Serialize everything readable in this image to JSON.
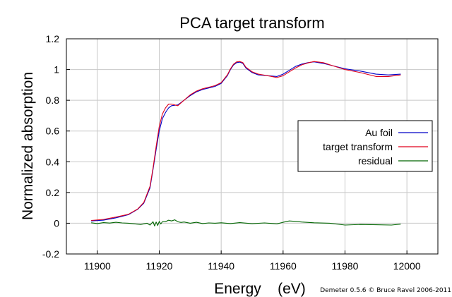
{
  "chart_data": {
    "type": "line",
    "title": "PCA target transform",
    "xlabel": "Energy    (eV)",
    "ylabel": "Normalized absorption",
    "credit": "Demeter 0.5.6 © Bruce Ravel 2006-2011",
    "xlim": [
      11890,
      12010
    ],
    "ylim": [
      -0.2,
      1.2
    ],
    "xticks": [
      "11900",
      "11920",
      "11940",
      "11960",
      "11980",
      "12000"
    ],
    "yticks": [
      "-0.2",
      "0",
      "0.2",
      "0.4",
      "0.6",
      "0.8",
      "1",
      "1.2"
    ],
    "grid": true,
    "legend_position": "right",
    "series": [
      {
        "name": "Au foil",
        "color": "#0000c8",
        "x": [
          11898,
          11902,
          11906,
          11910,
          11913,
          11915,
          11917,
          11918,
          11919,
          11920,
          11921,
          11922,
          11923,
          11924,
          11926,
          11928,
          11930,
          11932,
          11934,
          11936,
          11938,
          11940,
          11942,
          11943,
          11944,
          11945,
          11946,
          11947,
          11948,
          11950,
          11952,
          11955,
          11958,
          11960,
          11962,
          11964,
          11966,
          11968,
          11970,
          11973,
          11976,
          11980,
          11985,
          11990,
          11994,
          11998
        ],
        "values": [
          0.015,
          0.02,
          0.035,
          0.055,
          0.09,
          0.13,
          0.23,
          0.35,
          0.48,
          0.6,
          0.68,
          0.72,
          0.75,
          0.765,
          0.77,
          0.8,
          0.83,
          0.855,
          0.87,
          0.88,
          0.89,
          0.91,
          0.96,
          1.0,
          1.03,
          1.045,
          1.048,
          1.04,
          1.01,
          0.98,
          0.965,
          0.96,
          0.955,
          0.97,
          0.995,
          1.02,
          1.035,
          1.045,
          1.05,
          1.04,
          1.025,
          1.005,
          0.99,
          0.97,
          0.965,
          0.97
        ]
      },
      {
        "name": "target transform",
        "color": "#e0001c",
        "x": [
          11898,
          11902,
          11906,
          11910,
          11913,
          11915,
          11917,
          11918,
          11919,
          11920,
          11921,
          11922,
          11923,
          11924,
          11926,
          11928,
          11930,
          11932,
          11934,
          11936,
          11938,
          11940,
          11942,
          11943,
          11944,
          11945,
          11946,
          11947,
          11948,
          11950,
          11952,
          11955,
          11958,
          11960,
          11962,
          11964,
          11966,
          11968,
          11970,
          11973,
          11976,
          11980,
          11985,
          11990,
          11994,
          11998
        ],
        "values": [
          0.018,
          0.025,
          0.04,
          0.058,
          0.092,
          0.135,
          0.24,
          0.36,
          0.5,
          0.63,
          0.71,
          0.75,
          0.775,
          0.775,
          0.765,
          0.8,
          0.835,
          0.86,
          0.875,
          0.885,
          0.895,
          0.915,
          0.965,
          1.005,
          1.035,
          1.05,
          1.052,
          1.045,
          1.015,
          0.985,
          0.97,
          0.96,
          0.948,
          0.96,
          0.985,
          1.01,
          1.03,
          1.043,
          1.052,
          1.045,
          1.025,
          1.0,
          0.98,
          0.955,
          0.955,
          0.965
        ]
      },
      {
        "name": "residual",
        "color": "#006400",
        "x": [
          11898,
          11900,
          11902,
          11904,
          11906,
          11908,
          11910,
          11912,
          11914,
          11916,
          11917,
          11918,
          11918.5,
          11919,
          11919.5,
          11920,
          11920.5,
          11921,
          11922,
          11923,
          11924,
          11925,
          11926,
          11927,
          11928,
          11930,
          11932,
          11934,
          11936,
          11938,
          11940,
          11943,
          11946,
          11950,
          11954,
          11958,
          11960,
          11962,
          11964,
          11966,
          11970,
          11975,
          11980,
          11985,
          11990,
          11995,
          11998
        ],
        "values": [
          0.003,
          -0.002,
          0.004,
          0.001,
          0.006,
          0.002,
          0.0,
          -0.004,
          -0.008,
          0.0,
          -0.012,
          0.01,
          -0.018,
          0.008,
          -0.015,
          0.012,
          -0.005,
          0.01,
          0.01,
          0.02,
          0.015,
          0.022,
          0.01,
          0.005,
          0.008,
          0.0,
          0.006,
          -0.002,
          0.002,
          0.0,
          0.003,
          -0.002,
          0.004,
          -0.003,
          0.002,
          -0.004,
          0.006,
          0.015,
          0.012,
          0.008,
          0.003,
          0.0,
          -0.012,
          -0.008,
          -0.01,
          -0.012,
          -0.006
        ]
      }
    ]
  }
}
